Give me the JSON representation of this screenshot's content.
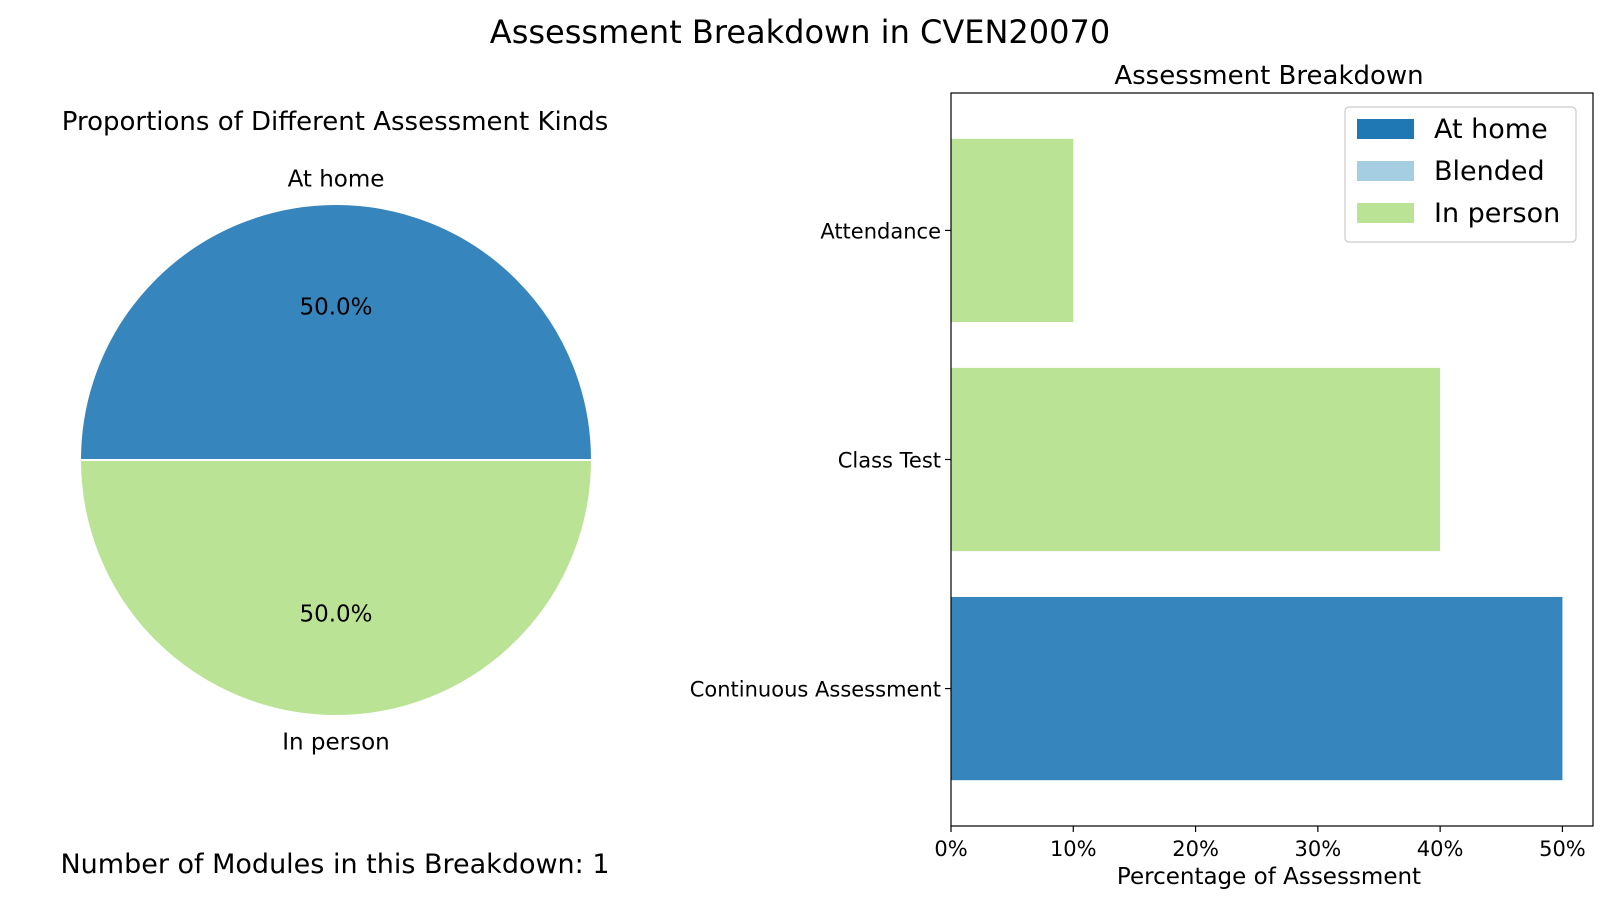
{
  "figure": {
    "title": "Assessment Breakdown in CVEN20070",
    "footer": "Number of Modules in this Breakdown: 1"
  },
  "colors": {
    "at_home": "#3685bc",
    "blended": "#a6cee3",
    "in_person": "#bbe395",
    "legend_at_home": "#1f78b4"
  },
  "chart_data": [
    {
      "type": "pie",
      "title": "Proportions of Different Assessment Kinds",
      "slices": [
        {
          "label": "At home",
          "value": 50,
          "pct_label": "50.0%",
          "color": "#3685bc"
        },
        {
          "label": "In person",
          "value": 50,
          "pct_label": "50.0%",
          "color": "#bbe395"
        }
      ]
    },
    {
      "type": "bar",
      "orientation": "horizontal",
      "title": "Assessment Breakdown",
      "xlabel": "Percentage of Assessment",
      "ylabel": "",
      "xlim": [
        0,
        52.5
      ],
      "xticks": [
        0,
        10,
        20,
        30,
        40,
        50
      ],
      "xtick_labels": [
        "0%",
        "10%",
        "20%",
        "30%",
        "40%",
        "50%"
      ],
      "categories": [
        "Attendance",
        "Class Test",
        "Continuous Assessment"
      ],
      "series": [
        {
          "name": "At home",
          "values": [
            0,
            0,
            50
          ],
          "color": "#3685bc",
          "legend_color": "#1f78b4"
        },
        {
          "name": "Blended",
          "values": [
            0,
            0,
            0
          ],
          "color": "#a6cee3",
          "legend_color": "#a6cee3"
        },
        {
          "name": "In person",
          "values": [
            10,
            40,
            0
          ],
          "color": "#bbe395",
          "legend_color": "#bbe395"
        }
      ],
      "legend": "top-right",
      "grid": false
    }
  ]
}
